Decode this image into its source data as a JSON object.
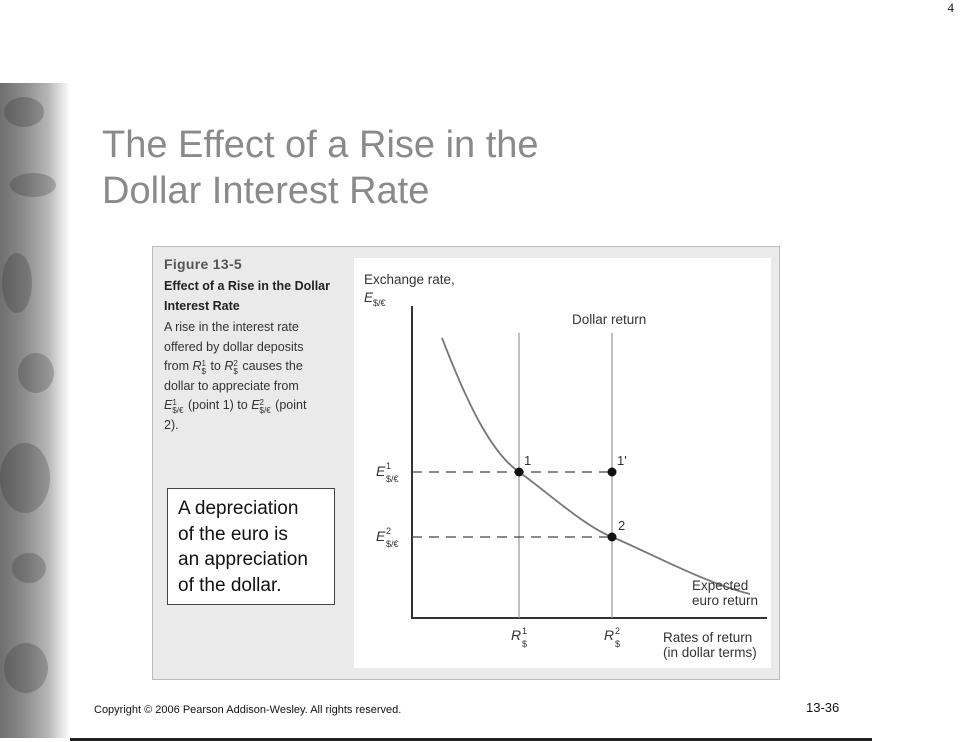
{
  "page_number": "4",
  "slide_title": {
    "line1": "The Effect of a Rise in the",
    "line2": "Dollar Interest Rate"
  },
  "figure": {
    "number": "Figure 13-5",
    "title_line1": "Effect of a Rise in the Dollar",
    "title_line2": "Interest Rate",
    "caption": {
      "line1": "A rise in the interest rate",
      "line2": "offered by dollar deposits",
      "from": "from",
      "r_symbol": "R",
      "currency_sub": "$",
      "sup1": "1",
      "sup2": "2",
      "to": "to",
      "causes_the": "causes the",
      "line4": "dollar to appreciate from",
      "e_symbol": "E",
      "e_sub": "$/€",
      "point1": "(point 1) to",
      "point_open": "(point",
      "line6": "2)."
    }
  },
  "diagram": {
    "y_axis_label_line1": "Exchange rate,",
    "y_axis_symbol": "E",
    "y_axis_sub": "$/€",
    "dollar_return_label": "Dollar return",
    "expected_euro_return_line1": "Expected",
    "expected_euro_return_line2": "euro return",
    "x_axis_label_line1": "Rates of return",
    "x_axis_label_line2": "(in dollar terms)",
    "point_labels": [
      "1",
      "1'",
      "2"
    ],
    "e1_symbol": "E",
    "e1_sup": "1",
    "e1_sub": "$/€",
    "e2_symbol": "E",
    "e2_sup": "2",
    "e2_sub": "$/€",
    "r1_symbol": "R",
    "r1_sup": "1",
    "r1_sub": "$",
    "r2_symbol": "R",
    "r2_sup": "2",
    "r2_sub": "$"
  },
  "callout": {
    "line1": "A depreciation",
    "line2": "of the euro is",
    "line3": "an appreciation",
    "line4": "of the dollar."
  },
  "footer": {
    "copyright": "Copyright © 2006 Pearson Addison-Wesley. All rights reserved.",
    "slide_number": "13-36"
  }
}
